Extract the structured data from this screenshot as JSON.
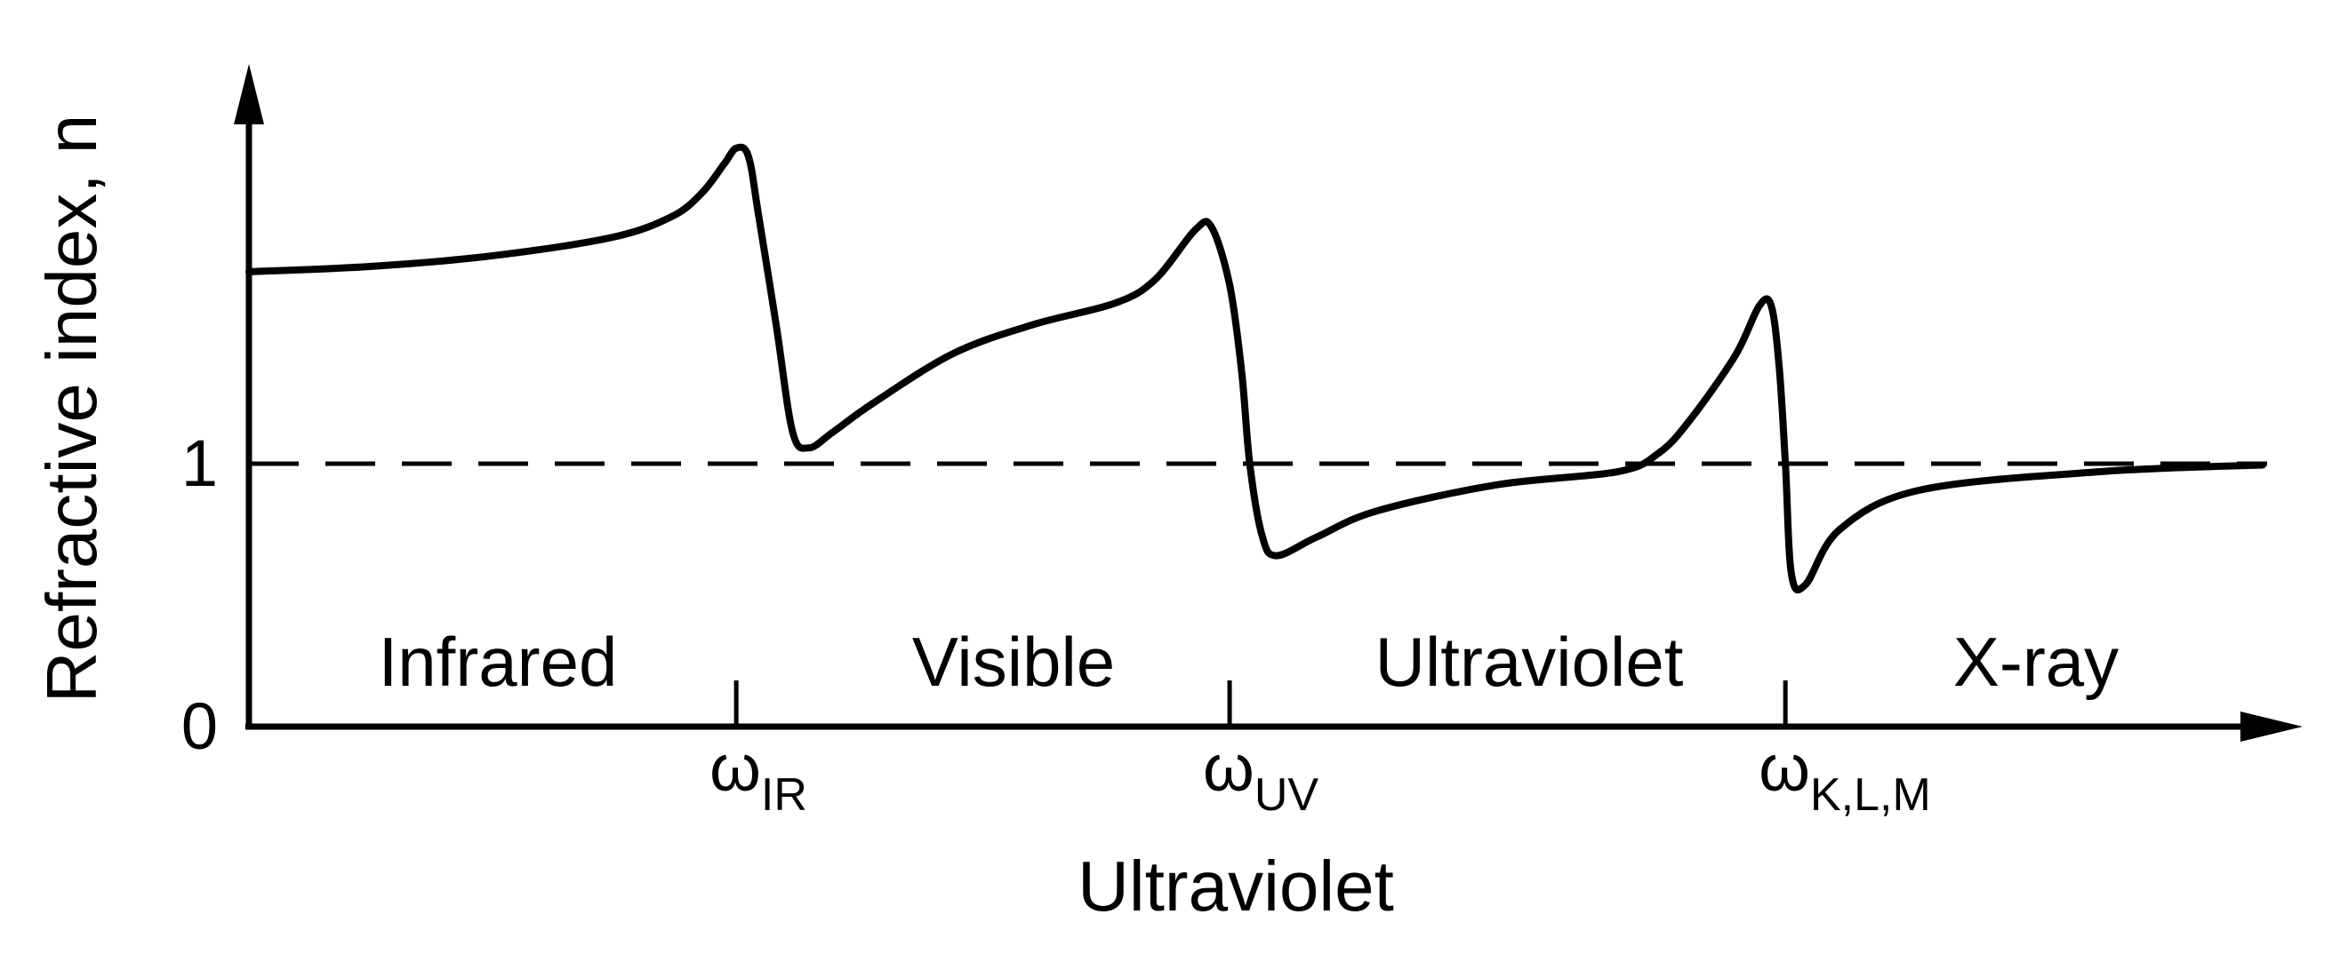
{
  "chart_data": {
    "type": "line",
    "title": "",
    "xlabel": "Ultraviolet",
    "ylabel": "Refractive index, n",
    "y_ticks": [
      "0",
      "1"
    ],
    "x_ticks": [
      {
        "symbol": "ω",
        "subscript": "IR"
      },
      {
        "symbol": "ω",
        "subscript": "UV"
      },
      {
        "symbol": "ω",
        "subscript": "K,L,M"
      }
    ],
    "regions": [
      "Infrared",
      "Visible",
      "Ultraviolet",
      "X-ray"
    ],
    "reference_line": {
      "y": 1,
      "style": "dashed"
    },
    "series": [
      {
        "values_note_free": true,
        "points": [
          [
            0.0,
            1.73
          ],
          [
            0.06,
            1.75
          ],
          [
            0.12,
            1.79
          ],
          [
            0.18,
            1.86
          ],
          [
            0.21,
            1.94
          ],
          [
            0.225,
            2.03
          ],
          [
            0.236,
            2.14
          ],
          [
            0.242,
            2.2
          ],
          [
            0.248,
            2.17
          ],
          [
            0.253,
            1.95
          ],
          [
            0.262,
            1.52
          ],
          [
            0.27,
            1.12
          ],
          [
            0.278,
            1.06
          ],
          [
            0.29,
            1.12
          ],
          [
            0.31,
            1.23
          ],
          [
            0.35,
            1.42
          ],
          [
            0.39,
            1.53
          ],
          [
            0.43,
            1.61
          ],
          [
            0.45,
            1.7
          ],
          [
            0.47,
            1.89
          ],
          [
            0.478,
            1.9
          ],
          [
            0.487,
            1.68
          ],
          [
            0.493,
            1.35
          ],
          [
            0.497,
            1.0
          ],
          [
            0.503,
            0.73
          ],
          [
            0.51,
            0.65
          ],
          [
            0.53,
            0.72
          ],
          [
            0.56,
            0.82
          ],
          [
            0.62,
            0.92
          ],
          [
            0.68,
            0.97
          ],
          [
            0.7,
            1.04
          ],
          [
            0.715,
            1.16
          ],
          [
            0.738,
            1.41
          ],
          [
            0.75,
            1.6
          ],
          [
            0.756,
            1.6
          ],
          [
            0.76,
            1.36
          ],
          [
            0.763,
            1.0
          ],
          [
            0.766,
            0.58
          ],
          [
            0.773,
            0.54
          ],
          [
            0.79,
            0.75
          ],
          [
            0.83,
            0.9
          ],
          [
            0.92,
            0.97
          ],
          [
            1.0,
            0.995
          ]
        ],
        "x_ticks_at": [
          0.242,
          0.487,
          0.763
        ],
        "y_at_one": 1
      }
    ],
    "x_tick_positions": [
      0.242,
      0.487,
      0.763
    ],
    "ylim": [
      0,
      2.5
    ],
    "xlim": [
      0,
      1
    ],
    "grid": false,
    "color": "#000000"
  }
}
